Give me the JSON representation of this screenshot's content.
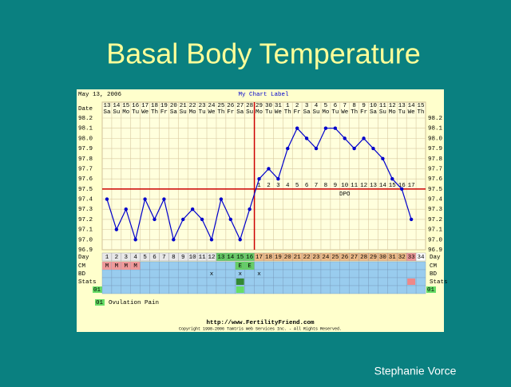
{
  "slide": {
    "title": "Basal Body Temperature",
    "author": "Stephanie Vorce"
  },
  "chart_data": {
    "type": "line",
    "printed_date": "May 13, 2006",
    "title": "My Chart Label",
    "date_label": "Date",
    "x": [
      "13",
      "14",
      "15",
      "16",
      "17",
      "18",
      "19",
      "20",
      "21",
      "22",
      "23",
      "24",
      "25",
      "26",
      "27",
      "28",
      "29",
      "30",
      "31",
      "1",
      "2",
      "3",
      "4",
      "5",
      "6",
      "7",
      "8",
      "9",
      "10",
      "11",
      "12",
      "13",
      "14",
      "15"
    ],
    "weekdays": [
      "Sa",
      "Su",
      "Mo",
      "Tu",
      "We",
      "Th",
      "Fr",
      "Sa",
      "Su",
      "Mo",
      "Tu",
      "We",
      "Th",
      "Fr",
      "Sa",
      "Su",
      "Mo",
      "Tu",
      "We",
      "Th",
      "Fr",
      "Sa",
      "Su",
      "Mo",
      "Tu",
      "We",
      "Th",
      "Fr",
      "Sa",
      "Su",
      "Mo",
      "Tu",
      "We",
      "Th"
    ],
    "ylim": [
      96.9,
      98.2
    ],
    "yticks": [
      96.9,
      {
        "value": 97,
        "label": "97.0"
      },
      97.1,
      97.2,
      97.3,
      97.4,
      97.5,
      97.6,
      97.7,
      97.8,
      97.9,
      {
        "value": 98,
        "label": "98.0"
      },
      98.1,
      98.2
    ],
    "values": [
      97.4,
      97.1,
      97.3,
      97.0,
      97.4,
      97.2,
      97.4,
      97.0,
      97.2,
      97.3,
      97.2,
      97.0,
      97.4,
      97.2,
      97.0,
      97.3,
      97.6,
      97.7,
      97.6,
      97.9,
      98.1,
      98.0,
      97.9,
      98.1,
      98.1,
      98.0,
      97.9,
      98.0,
      97.9,
      97.8,
      97.6,
      97.5,
      97.2,
      null
    ],
    "color": "#0000cc",
    "grid": true,
    "coverline": 97.5,
    "coverline_color": "#cc0000",
    "ovulation_day": 16,
    "dpo": [
      1,
      2,
      3,
      4,
      5,
      6,
      7,
      8,
      9,
      10,
      11,
      12,
      13,
      14,
      15,
      16,
      17
    ],
    "dpo_label": "DPO",
    "day_label": "Day",
    "days": [
      1,
      2,
      3,
      4,
      5,
      6,
      7,
      8,
      9,
      10,
      11,
      12,
      13,
      14,
      15,
      16,
      17,
      18,
      19,
      20,
      21,
      22,
      23,
      24,
      25,
      26,
      27,
      28,
      29,
      30,
      31,
      32,
      33,
      34
    ],
    "day_colors": [
      "#e8e8e8",
      "#e8e8e8",
      "#e8e8e8",
      "#e8e8e8",
      "#e8e8e8",
      "#e8e8e8",
      "#e8e8e8",
      "#e8e8e8",
      "#e8e8e8",
      "#e8e8e8",
      "#e8e8e8",
      "#e8e8e8",
      "#66cc66",
      "#66cc66",
      "#66cc66",
      "#66cc66",
      "#eebb88",
      "#eebb88",
      "#eebb88",
      "#eebb88",
      "#eebb88",
      "#eebb88",
      "#eebb88",
      "#eebb88",
      "#eebb88",
      "#eebb88",
      "#eebb88",
      "#eebb88",
      "#eebb88",
      "#eebb88",
      "#eebb88",
      "#eebb88",
      "#ee9999",
      "#ffffff"
    ],
    "cm_label": "CM",
    "cm": [
      "M",
      "M",
      "M",
      "M",
      null,
      null,
      null,
      null,
      null,
      null,
      null,
      null,
      null,
      null,
      "E",
      "E",
      null,
      null,
      null,
      null,
      null,
      null,
      null,
      null,
      null,
      null,
      null,
      null,
      null,
      null,
      null,
      null,
      null,
      null
    ],
    "bd_label": "BD",
    "bd": [
      null,
      null,
      null,
      null,
      null,
      null,
      null,
      null,
      null,
      null,
      null,
      "x",
      null,
      null,
      "x",
      null,
      "x",
      null,
      null,
      null,
      null,
      null,
      null,
      null,
      null,
      null,
      null,
      null,
      null,
      null,
      null,
      null,
      null,
      null
    ],
    "stats_label": "Stats",
    "stats_marks": [
      {
        "day": 15,
        "color": "#338833"
      },
      {
        "day": 33,
        "color": "#ee8888"
      }
    ],
    "pain_label": "01",
    "pain_days": [
      15
    ],
    "legend": "Ovulation Pain",
    "url": "http://www.FertilityFriend.com",
    "copyright": "Copyright 1998-2006 Tamtris Web Services Inc. - All Rights Reserved."
  }
}
